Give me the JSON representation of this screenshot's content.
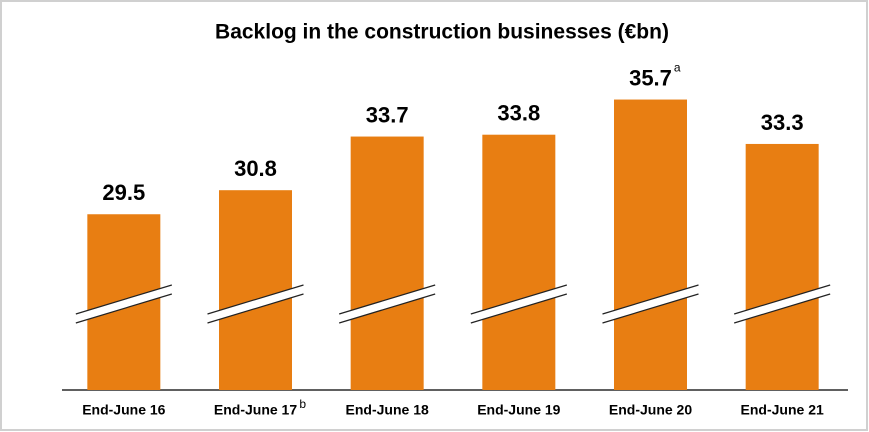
{
  "chart_data": {
    "type": "bar",
    "title": "Backlog in the construction businesses (€bn)",
    "categories": [
      "End-June 16",
      "End-June 17",
      "End-June 18",
      "End-June 19",
      "End-June 20",
      "End-June 21"
    ],
    "values": [
      29.5,
      30.8,
      33.7,
      33.8,
      35.7,
      33.3
    ],
    "color": "#e87e12",
    "ylim": [
      20,
      36
    ],
    "axis_break": true,
    "annotations": [
      {
        "index": 4,
        "on": "value",
        "text": "a"
      },
      {
        "index": 1,
        "on": "category",
        "text": "b"
      }
    ]
  }
}
